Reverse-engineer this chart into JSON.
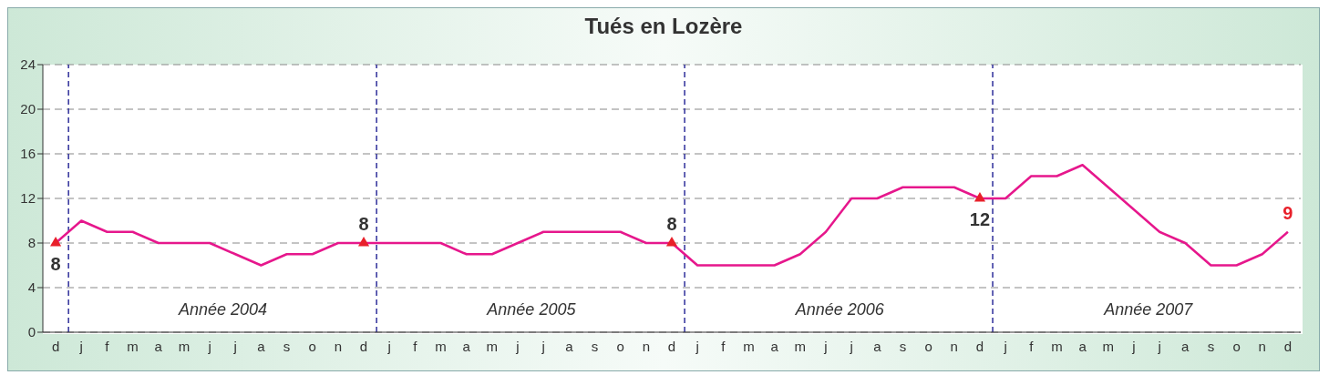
{
  "chart_data": {
    "type": "line",
    "title": "Tués en Lozère",
    "categories": [
      "d",
      "j",
      "f",
      "m",
      "a",
      "m",
      "j",
      "j",
      "a",
      "s",
      "o",
      "n",
      "d",
      "j",
      "f",
      "m",
      "a",
      "m",
      "j",
      "j",
      "a",
      "s",
      "o",
      "n",
      "d",
      "j",
      "f",
      "m",
      "a",
      "m",
      "j",
      "j",
      "a",
      "s",
      "o",
      "n",
      "d",
      "j",
      "f",
      "m",
      "a",
      "m",
      "j",
      "j",
      "a",
      "s",
      "o",
      "n",
      "d"
    ],
    "series": [
      {
        "type": "line",
        "color": "#e6178c",
        "marker": "none",
        "line_style": "solid",
        "values": [
          8,
          10,
          9,
          9,
          8,
          8,
          8,
          7,
          6,
          7,
          7,
          8,
          8,
          8,
          8,
          8,
          7,
          7,
          8,
          9,
          9,
          9,
          9,
          8,
          8,
          6,
          6,
          6,
          6,
          7,
          9,
          12,
          12,
          13,
          13,
          13,
          12,
          12,
          14,
          14,
          15,
          13,
          11,
          9,
          8,
          6,
          6,
          7,
          9
        ],
        "value_labels": [
          null,
          null,
          null,
          null,
          null,
          null,
          null,
          null,
          null,
          null,
          null,
          null,
          null,
          null,
          null,
          null,
          null,
          null,
          null,
          null,
          null,
          null,
          null,
          null,
          null,
          null,
          null,
          null,
          null,
          null,
          null,
          null,
          null,
          null,
          null,
          null,
          null,
          null,
          null,
          null,
          null,
          null,
          null,
          null,
          null,
          null,
          null,
          null,
          "9"
        ]
      },
      {
        "type": "scatter",
        "color": "#e8202a",
        "marker": "triangle",
        "values": [
          8,
          null,
          null,
          null,
          null,
          null,
          null,
          null,
          null,
          null,
          null,
          null,
          8,
          null,
          null,
          null,
          null,
          null,
          null,
          null,
          null,
          null,
          null,
          null,
          8,
          null,
          null,
          null,
          null,
          null,
          null,
          null,
          null,
          null,
          null,
          null,
          12,
          null,
          null,
          null,
          null,
          null,
          null,
          null,
          null,
          null,
          null,
          null,
          null
        ],
        "value_labels": [
          "8",
          null,
          null,
          null,
          null,
          null,
          null,
          null,
          null,
          null,
          null,
          null,
          "8",
          null,
          null,
          null,
          null,
          null,
          null,
          null,
          null,
          null,
          null,
          null,
          "8",
          null,
          null,
          null,
          null,
          null,
          null,
          null,
          null,
          null,
          null,
          null,
          "12",
          null,
          null,
          null,
          null,
          null,
          null,
          null,
          null,
          null,
          null,
          null,
          null
        ]
      }
    ],
    "ylim": [
      0,
      24
    ],
    "yticks": [
      0,
      4,
      8,
      12,
      16,
      20,
      24
    ],
    "grid": "y",
    "legend": false,
    "annotations": [
      "Année 2004",
      "Année 2005",
      "Année 2006",
      "Année 2007"
    ]
  }
}
